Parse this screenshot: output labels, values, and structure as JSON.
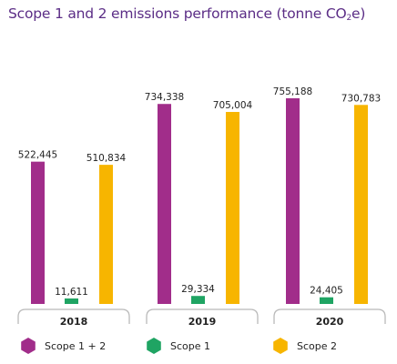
{
  "chart_data": {
    "type": "bar",
    "title": "Scope 1 and 2 emissions performance (tonne CO",
    "title_subscript": "2",
    "title_suffix": "e)",
    "categories": [
      "2018",
      "2019",
      "2020"
    ],
    "series": [
      {
        "name": "Scope 1 + 2",
        "color": "#a12d8a",
        "values": [
          522445,
          734338,
          755188
        ],
        "labels": [
          "522,445",
          "734,338",
          "755,188"
        ]
      },
      {
        "name": "Scope 1",
        "color": "#1fa463",
        "values": [
          11611,
          29334,
          24405
        ],
        "labels": [
          "11,611",
          "29,334",
          "24,405"
        ]
      },
      {
        "name": "Scope 2",
        "color": "#f7b500",
        "values": [
          510834,
          705004,
          730783
        ],
        "labels": [
          "510,834",
          "705,004",
          "730,783"
        ]
      }
    ],
    "legend_position": "bottom",
    "grid": false
  }
}
